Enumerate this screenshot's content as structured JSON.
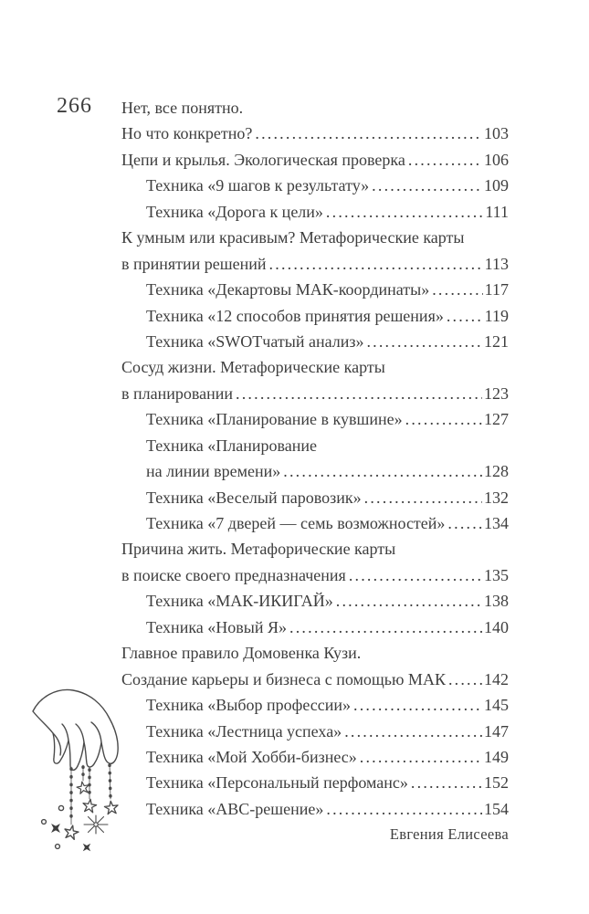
{
  "page": {
    "number": "266",
    "footer_author": "Евгения Елисеева"
  },
  "toc": {
    "entries": [
      {
        "text": "Нет, все понятно.",
        "page": "",
        "indent": 0
      },
      {
        "text": "Но что конкретно?",
        "page": "103",
        "indent": 0
      },
      {
        "text": "Цепи и крылья. Экологическая проверка",
        "page": "106",
        "indent": 0
      },
      {
        "text": "Техника «9 шагов к результату»",
        "page": "109",
        "indent": 1
      },
      {
        "text": "Техника «Дорога к цели»",
        "page": "111",
        "indent": 1
      },
      {
        "text": "К умным или красивым? Метафорические карты",
        "page": "",
        "indent": 0
      },
      {
        "text": "в принятии решений",
        "page": "113",
        "indent": 0
      },
      {
        "text": "Техника «Декартовы МАК-координаты»",
        "page": "117",
        "indent": 1
      },
      {
        "text": "Техника «12 способов принятия решения»",
        "page": "119",
        "indent": 1
      },
      {
        "text": "Техника «SWOTчатый анализ»",
        "page": "121",
        "indent": 1
      },
      {
        "text": "Сосуд жизни. Метафорические карты",
        "page": "",
        "indent": 0
      },
      {
        "text": "в планировании",
        "page": "123",
        "indent": 0
      },
      {
        "text": "Техника «Планирование в кувшине»",
        "page": "127",
        "indent": 1
      },
      {
        "text": "Техника «Планирование",
        "page": "",
        "indent": 1
      },
      {
        "text": "на линии времени»",
        "page": "128",
        "indent": 1
      },
      {
        "text": "Техника «Веселый паровозик»",
        "page": "132",
        "indent": 1
      },
      {
        "text": "Техника «7 дверей — семь возможностей»",
        "page": "134",
        "indent": 1
      },
      {
        "text": "Причина жить. Метафорические карты",
        "page": "",
        "indent": 0
      },
      {
        "text": "в поиске своего предназначения",
        "page": "135",
        "indent": 0
      },
      {
        "text": "Техника «МАК-ИКИГАЙ»",
        "page": "138",
        "indent": 1
      },
      {
        "text": "Техника «Новый Я»",
        "page": "140",
        "indent": 1
      },
      {
        "text": "Главное правило Домовенка Кузи.",
        "page": "",
        "indent": 0
      },
      {
        "text": "Создание карьеры и бизнеса с помощью МАК",
        "page": "142",
        "indent": 0
      },
      {
        "text": "Техника «Выбор профессии»",
        "page": "145",
        "indent": 1
      },
      {
        "text": "Техника «Лестница успеха»",
        "page": "147",
        "indent": 1
      },
      {
        "text": "Техника «Мой Хобби-бизнес»",
        "page": "149",
        "indent": 1
      },
      {
        "text": "Техника «Персональный перфоманс»",
        "page": "152",
        "indent": 1
      },
      {
        "text": "Техника «ABC-решение»",
        "page": "154",
        "indent": 1
      }
    ]
  },
  "illustration": {
    "name": "hand-dangling-star-garlands"
  },
  "colors": {
    "ink": "#3e3e3e",
    "line_art": "#4a4a4a",
    "paper": "#ffffff"
  }
}
